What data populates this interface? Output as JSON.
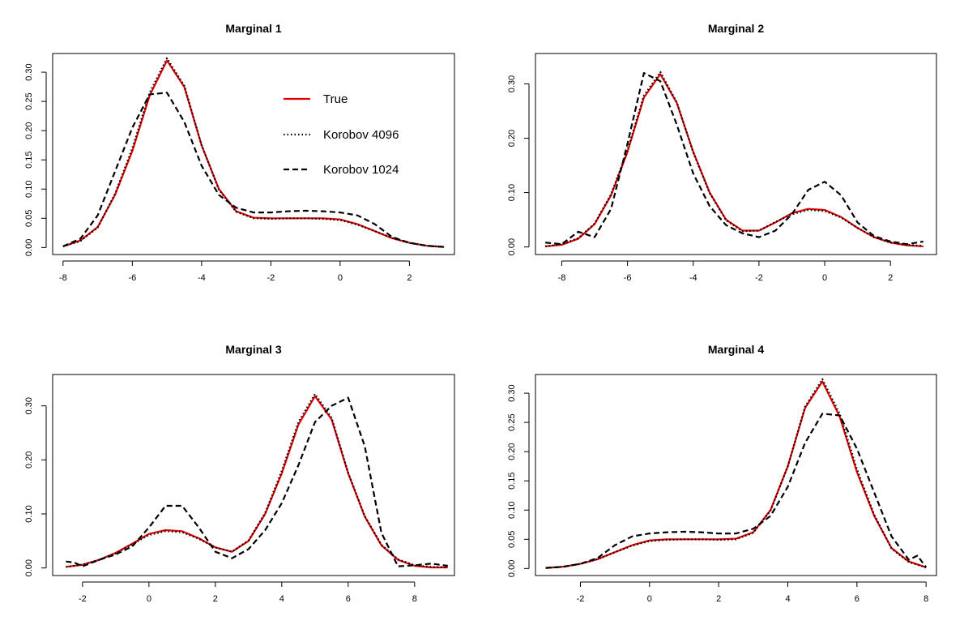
{
  "chart_data": [
    {
      "type": "line",
      "title": "Marginal 1",
      "xlabel": "",
      "ylabel": "",
      "xlim": [
        -8.3,
        3.3
      ],
      "ylim": [
        -0.012,
        0.332
      ],
      "xticks": [
        -8,
        -6,
        -4,
        -2,
        0,
        2
      ],
      "xtick_labels": [
        "-8",
        "-6",
        "-4",
        "-2",
        "0",
        "2"
      ],
      "yticks": [
        0,
        0.05,
        0.1,
        0.15,
        0.2,
        0.25,
        0.3
      ],
      "ytick_labels": [
        "0.00",
        "0.05",
        "0.10",
        "0.15",
        "0.20",
        "0.25",
        "0.30"
      ],
      "legend": {
        "position": "top-right",
        "entries": [
          "True",
          "Korobov 4096",
          "Korobov 1024"
        ]
      },
      "series": [
        {
          "name": "True",
          "style": "solid",
          "color": "#e00000",
          "x": [
            -8,
            -7.5,
            -7,
            -6.5,
            -6,
            -5.5,
            -5,
            -4.5,
            -4,
            -3.5,
            -3,
            -2.5,
            -2,
            -1.5,
            -1,
            -0.5,
            0,
            0.5,
            1,
            1.5,
            2,
            2.5,
            3
          ],
          "y": [
            0.002,
            0.012,
            0.035,
            0.09,
            0.165,
            0.26,
            0.32,
            0.275,
            0.175,
            0.1,
            0.062,
            0.051,
            0.05,
            0.05,
            0.05,
            0.05,
            0.048,
            0.04,
            0.028,
            0.016,
            0.008,
            0.003,
            0.001
          ]
        },
        {
          "name": "Korobov 4096",
          "style": "dotted",
          "color": "#000000",
          "x": [
            -8,
            -7.5,
            -7,
            -6.5,
            -6,
            -5.5,
            -5,
            -4.5,
            -4,
            -3.5,
            -3,
            -2.5,
            -2,
            -1.5,
            -1,
            -0.5,
            0,
            0.5,
            1,
            1.5,
            2,
            2.5,
            3
          ],
          "y": [
            0.002,
            0.011,
            0.034,
            0.092,
            0.17,
            0.265,
            0.324,
            0.277,
            0.175,
            0.099,
            0.061,
            0.05,
            0.049,
            0.05,
            0.05,
            0.049,
            0.047,
            0.039,
            0.028,
            0.016,
            0.008,
            0.003,
            0.001
          ]
        },
        {
          "name": "Korobov 1024",
          "style": "dashed",
          "color": "#000000",
          "x": [
            -8,
            -7.5,
            -7,
            -6.5,
            -6,
            -5.5,
            -5,
            -4.5,
            -4,
            -3.5,
            -3,
            -2.5,
            -2,
            -1.5,
            -1,
            -0.5,
            0,
            0.5,
            1,
            1.5,
            2,
            2.5,
            3
          ],
          "y": [
            0.002,
            0.015,
            0.055,
            0.13,
            0.205,
            0.262,
            0.265,
            0.215,
            0.14,
            0.09,
            0.068,
            0.06,
            0.06,
            0.062,
            0.063,
            0.062,
            0.06,
            0.055,
            0.04,
            0.018,
            0.008,
            0.003,
            0.001
          ]
        }
      ]
    },
    {
      "type": "line",
      "title": "Marginal 2",
      "xlabel": "",
      "ylabel": "",
      "xlim": [
        -8.8,
        3.4
      ],
      "ylim": [
        -0.014,
        0.356
      ],
      "xticks": [
        -8,
        -6,
        -4,
        -2,
        0,
        2
      ],
      "xtick_labels": [
        "-8",
        "-6",
        "-4",
        "-2",
        "0",
        "2"
      ],
      "yticks": [
        0,
        0.1,
        0.2,
        0.3
      ],
      "ytick_labels": [
        "0.00",
        "0.10",
        "0.20",
        "0.30"
      ],
      "series": [
        {
          "name": "True",
          "style": "solid",
          "color": "#e00000",
          "x": [
            -8.5,
            -8,
            -7.5,
            -7,
            -6.5,
            -6,
            -5.5,
            -5,
            -4.5,
            -4,
            -3.5,
            -3,
            -2.5,
            -2,
            -1.5,
            -1,
            -0.5,
            0,
            0.5,
            1,
            1.5,
            2,
            2.5,
            3
          ],
          "y": [
            0.001,
            0.004,
            0.015,
            0.042,
            0.095,
            0.175,
            0.275,
            0.318,
            0.265,
            0.175,
            0.1,
            0.05,
            0.03,
            0.03,
            0.045,
            0.062,
            0.07,
            0.068,
            0.055,
            0.035,
            0.018,
            0.008,
            0.003,
            0.001
          ]
        },
        {
          "name": "Korobov 4096",
          "style": "dotted",
          "color": "#000000",
          "x": [
            -8.5,
            -8,
            -7.5,
            -7,
            -6.5,
            -6,
            -5.5,
            -5,
            -4.5,
            -4,
            -3.5,
            -3,
            -2.5,
            -2,
            -1.5,
            -1,
            -0.5,
            0,
            0.5,
            1,
            1.5,
            2,
            2.5,
            3
          ],
          "y": [
            0.001,
            0.005,
            0.016,
            0.043,
            0.097,
            0.178,
            0.279,
            0.322,
            0.266,
            0.174,
            0.099,
            0.049,
            0.029,
            0.03,
            0.046,
            0.06,
            0.068,
            0.066,
            0.054,
            0.035,
            0.018,
            0.008,
            0.004,
            0.002
          ]
        },
        {
          "name": "Korobov 1024",
          "style": "dashed",
          "color": "#000000",
          "x": [
            -8.5,
            -8,
            -7.5,
            -7,
            -6.5,
            -6,
            -5.5,
            -5,
            -4.5,
            -4,
            -3.5,
            -3,
            -2.5,
            -2,
            -1.5,
            -1,
            -0.5,
            0,
            0.5,
            1,
            1.5,
            2,
            2.5,
            3
          ],
          "y": [
            0.008,
            0.005,
            0.028,
            0.018,
            0.07,
            0.19,
            0.32,
            0.305,
            0.225,
            0.135,
            0.075,
            0.04,
            0.025,
            0.018,
            0.03,
            0.06,
            0.105,
            0.12,
            0.095,
            0.045,
            0.02,
            0.01,
            0.005,
            0.01
          ]
        }
      ]
    },
    {
      "type": "line",
      "title": "Marginal 3",
      "xlabel": "",
      "ylabel": "",
      "xlim": [
        -2.9,
        9.2
      ],
      "ylim": [
        -0.014,
        0.358
      ],
      "xticks": [
        -2,
        0,
        2,
        4,
        6,
        8
      ],
      "xtick_labels": [
        "-2",
        "0",
        "2",
        "4",
        "6",
        "8"
      ],
      "yticks": [
        0,
        0.1,
        0.2,
        0.3
      ],
      "ytick_labels": [
        "0.00",
        "0.10",
        "0.20",
        "0.30"
      ],
      "series": [
        {
          "name": "True",
          "style": "solid",
          "color": "#e00000",
          "x": [
            -2.5,
            -2,
            -1.5,
            -1,
            -0.5,
            0,
            0.5,
            1,
            1.5,
            2,
            2.5,
            3,
            3.5,
            4,
            4.5,
            5,
            5.5,
            6,
            6.5,
            7,
            7.5,
            8,
            8.5,
            9
          ],
          "y": [
            0.002,
            0.006,
            0.015,
            0.028,
            0.045,
            0.063,
            0.07,
            0.068,
            0.055,
            0.038,
            0.03,
            0.05,
            0.1,
            0.175,
            0.265,
            0.318,
            0.275,
            0.175,
            0.095,
            0.042,
            0.015,
            0.004,
            0.001,
            0.001
          ]
        },
        {
          "name": "Korobov 4096",
          "style": "dotted",
          "color": "#000000",
          "x": [
            -2.5,
            -2,
            -1.5,
            -1,
            -0.5,
            0,
            0.5,
            1,
            1.5,
            2,
            2.5,
            3,
            3.5,
            4,
            4.5,
            5,
            5.5,
            6,
            6.5,
            7,
            7.5,
            8,
            8.5,
            9
          ],
          "y": [
            0.002,
            0.006,
            0.015,
            0.027,
            0.044,
            0.061,
            0.068,
            0.066,
            0.054,
            0.038,
            0.03,
            0.051,
            0.102,
            0.18,
            0.27,
            0.322,
            0.278,
            0.176,
            0.096,
            0.043,
            0.016,
            0.005,
            0.002,
            0.001
          ]
        },
        {
          "name": "Korobov 1024",
          "style": "dashed",
          "color": "#000000",
          "x": [
            -2.5,
            -2.25,
            -2,
            -1.5,
            -1,
            -0.5,
            0,
            0.5,
            1,
            1.5,
            2,
            2.5,
            3,
            3.5,
            4,
            4.5,
            5,
            5.5,
            6,
            6.5,
            7,
            7.5,
            8,
            8.5,
            9
          ],
          "y": [
            0.012,
            0.01,
            0.003,
            0.015,
            0.025,
            0.04,
            0.075,
            0.115,
            0.115,
            0.075,
            0.03,
            0.018,
            0.035,
            0.07,
            0.12,
            0.19,
            0.27,
            0.3,
            0.315,
            0.225,
            0.065,
            0.003,
            0.005,
            0.008,
            0.004
          ]
        }
      ]
    },
    {
      "type": "line",
      "title": "Marginal 4",
      "xlabel": "",
      "ylabel": "",
      "xlim": [
        -3.3,
        8.3
      ],
      "ylim": [
        -0.012,
        0.332
      ],
      "xticks": [
        -2,
        0,
        2,
        4,
        6,
        8
      ],
      "xtick_labels": [
        "-2",
        "0",
        "2",
        "4",
        "6",
        "8"
      ],
      "yticks": [
        0,
        0.05,
        0.1,
        0.15,
        0.2,
        0.25,
        0.3
      ],
      "ytick_labels": [
        "0.00",
        "0.05",
        "0.10",
        "0.15",
        "0.20",
        "0.25",
        "0.30"
      ],
      "series": [
        {
          "name": "True",
          "style": "solid",
          "color": "#e00000",
          "x": [
            -3,
            -2.5,
            -2,
            -1.5,
            -1,
            -0.5,
            0,
            0.5,
            1,
            1.5,
            2,
            2.5,
            3,
            3.5,
            4,
            4.5,
            5,
            5.5,
            6,
            6.5,
            7,
            7.5,
            8
          ],
          "y": [
            0.001,
            0.003,
            0.008,
            0.016,
            0.028,
            0.04,
            0.048,
            0.05,
            0.05,
            0.05,
            0.05,
            0.051,
            0.062,
            0.1,
            0.175,
            0.275,
            0.32,
            0.26,
            0.165,
            0.09,
            0.035,
            0.012,
            0.002
          ]
        },
        {
          "name": "Korobov 4096",
          "style": "dotted",
          "color": "#000000",
          "x": [
            -3,
            -2.5,
            -2,
            -1.5,
            -1,
            -0.5,
            0,
            0.5,
            1,
            1.5,
            2,
            2.5,
            3,
            3.5,
            4,
            4.5,
            5,
            5.5,
            6,
            6.5,
            7,
            7.5,
            8
          ],
          "y": [
            0.001,
            0.003,
            0.008,
            0.016,
            0.028,
            0.039,
            0.047,
            0.049,
            0.05,
            0.05,
            0.049,
            0.05,
            0.061,
            0.099,
            0.175,
            0.277,
            0.324,
            0.265,
            0.17,
            0.092,
            0.034,
            0.011,
            0.002
          ]
        },
        {
          "name": "Korobov 1024",
          "style": "dashed",
          "color": "#000000",
          "x": [
            -3,
            -2.5,
            -2,
            -1.5,
            -1,
            -0.5,
            0,
            0.5,
            1,
            1.5,
            2,
            2.5,
            3,
            3.5,
            4,
            4.5,
            5,
            5.5,
            6,
            6.5,
            7,
            7.5,
            7.75,
            8
          ],
          "y": [
            0.001,
            0.003,
            0.008,
            0.018,
            0.04,
            0.055,
            0.06,
            0.062,
            0.063,
            0.062,
            0.06,
            0.06,
            0.068,
            0.09,
            0.14,
            0.215,
            0.265,
            0.262,
            0.205,
            0.13,
            0.055,
            0.015,
            0.022,
            0.002
          ]
        }
      ]
    }
  ]
}
